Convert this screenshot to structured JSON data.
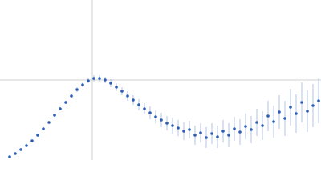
{
  "chart_data": {
    "type": "scatter",
    "x": [
      12,
      19,
      26,
      33,
      40,
      47,
      54,
      61,
      68,
      75,
      82,
      89,
      96,
      103,
      110,
      117,
      124,
      131,
      138,
      145,
      152,
      159,
      166,
      173,
      180,
      187,
      194,
      201,
      208,
      215,
      222,
      229,
      236,
      243,
      250,
      257,
      264,
      271,
      278,
      285,
      292,
      299,
      306,
      313,
      320,
      327,
      334,
      341,
      348,
      355,
      362,
      369,
      376,
      383,
      390,
      397
    ],
    "values": [
      4,
      8,
      13,
      18,
      24,
      31,
      39,
      47,
      56,
      64,
      72,
      80,
      88,
      94,
      99,
      102,
      102,
      100,
      96,
      91,
      86,
      80,
      75,
      69,
      64,
      59,
      54,
      50,
      46,
      43,
      40,
      36,
      38,
      31,
      34,
      28,
      33,
      29,
      36,
      31,
      39,
      35,
      42,
      38,
      47,
      43,
      55,
      48,
      60,
      52,
      66,
      58,
      72,
      61,
      68,
      74
    ],
    "errors": [
      1,
      1,
      1,
      1,
      1,
      1,
      1,
      1,
      2,
      2,
      2,
      2,
      3,
      3,
      3,
      4,
      4,
      4,
      5,
      5,
      5,
      6,
      6,
      7,
      7,
      8,
      8,
      9,
      9,
      10,
      10,
      11,
      11,
      12,
      12,
      13,
      13,
      14,
      14,
      15,
      15,
      16,
      16,
      17,
      17,
      18,
      19,
      20,
      21,
      22,
      23,
      24,
      25,
      26,
      27,
      28
    ],
    "color": "#2e5db4",
    "error_color": "#b3c6e6",
    "xlim": [
      0,
      400
    ],
    "ylim": [
      0,
      200
    ],
    "xticks": [
      115
    ],
    "yticks": [
      100
    ],
    "grid": true
  }
}
